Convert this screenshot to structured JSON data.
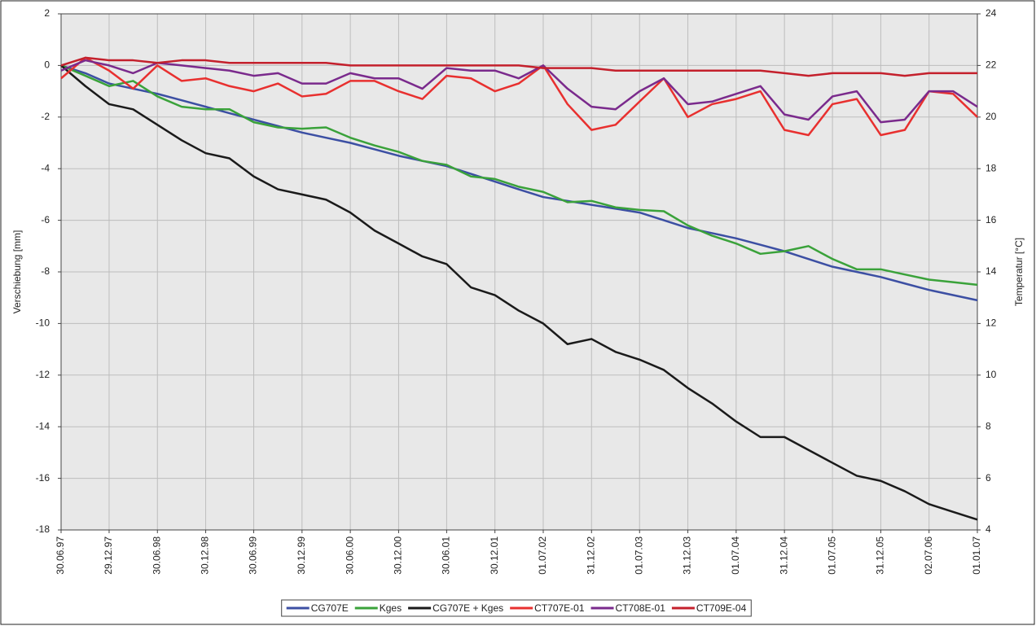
{
  "chart_data": {
    "type": "line",
    "y_label": "Verschiebung [mm]",
    "y2_label": "Temperatur [°C]",
    "x": [
      "30.06.97",
      "30.09.97",
      "29.12.97",
      "30.03.98",
      "30.06.98",
      "30.09.98",
      "30.12.98",
      "30.03.99",
      "30.06.99",
      "30.09.99",
      "30.12.99",
      "30.03.00",
      "30.06.00",
      "30.09.00",
      "30.12.00",
      "30.03.01",
      "30.06.01",
      "30.09.01",
      "30.12.01",
      "30.03.02",
      "01.07.02",
      "01.10.02",
      "31.12.02",
      "01.04.03",
      "01.07.03",
      "01.10.03",
      "31.12.03",
      "01.04.04",
      "01.07.04",
      "01.10.04",
      "31.12.04",
      "01.04.05",
      "01.07.05",
      "01.10.05",
      "31.12.05",
      "01.04.06",
      "02.07.06",
      "01.10.06",
      "01.01.07"
    ],
    "xlim": [
      "30.06.97",
      "01.01.07"
    ],
    "xticks": [
      "30.06.97",
      "29.12.97",
      "30.06.98",
      "30.12.98",
      "30.06.99",
      "30.12.99",
      "30.06.00",
      "30.12.00",
      "30.06.01",
      "30.12.01",
      "01.07.02",
      "31.12.02",
      "01.07.03",
      "31.12.03",
      "01.07.04",
      "31.12.04",
      "01.07.05",
      "31.12.05",
      "02.07.06",
      "01.01.07"
    ],
    "ylim": [
      -18,
      2
    ],
    "yticks": [
      -18,
      -16,
      -14,
      -12,
      -10,
      -8,
      -6,
      -4,
      -2,
      0,
      2
    ],
    "y2lim": [
      4,
      24
    ],
    "y2ticks": [
      4,
      6,
      8,
      10,
      12,
      14,
      16,
      18,
      20,
      22,
      24
    ],
    "grid": true,
    "series": [
      {
        "name": "CG707E",
        "color": "#3c4fa3",
        "values": [
          0,
          -0.3,
          -0.7,
          -0.9,
          -1.1,
          -1.35,
          -1.6,
          -1.85,
          -2.1,
          -2.35,
          -2.6,
          -2.8,
          -3.0,
          -3.25,
          -3.5,
          -3.7,
          -3.9,
          -4.2,
          -4.5,
          -4.8,
          -5.1,
          -5.25,
          -5.4,
          -5.55,
          -5.7,
          -6.0,
          -6.3,
          -6.5,
          -6.7,
          -6.95,
          -7.2,
          -7.5,
          -7.8,
          -8.0,
          -8.2,
          -8.45,
          -8.7,
          -8.9,
          -9.1
        ]
      },
      {
        "name": "Kges",
        "color": "#3aa23a",
        "values": [
          0,
          -0.4,
          -0.8,
          -0.6,
          -1.2,
          -1.6,
          -1.7,
          -1.7,
          -2.2,
          -2.4,
          -2.45,
          -2.4,
          -2.8,
          -3.1,
          -3.35,
          -3.7,
          -3.85,
          -4.3,
          -4.4,
          -4.7,
          -4.9,
          -5.3,
          -5.25,
          -5.5,
          -5.6,
          -5.65,
          -6.2,
          -6.6,
          -6.9,
          -7.3,
          -7.2,
          -7.0,
          -7.5,
          -7.9,
          -7.9,
          -8.1,
          -8.3,
          -8.4,
          -8.5
        ]
      },
      {
        "name": "CG707E + Kges",
        "color": "#1a1a1a",
        "values": [
          0,
          -0.8,
          -1.5,
          -1.7,
          -2.3,
          -2.9,
          -3.4,
          -3.6,
          -4.3,
          -4.8,
          -5.0,
          -5.2,
          -5.7,
          -6.4,
          -6.9,
          -7.4,
          -7.7,
          -8.6,
          -8.9,
          -9.5,
          -10.0,
          -10.8,
          -10.6,
          -11.1,
          -11.4,
          -11.8,
          -12.5,
          -13.1,
          -13.8,
          -14.4,
          -14.4,
          -14.9,
          -15.4,
          -15.9,
          -16.1,
          -16.5,
          -17.0,
          -17.3,
          -17.6
        ]
      },
      {
        "name": "CT707E-01",
        "color": "#e8302f",
        "axis": "y2",
        "values": [
          21.5,
          22.3,
          21.8,
          21.1,
          22.0,
          21.4,
          21.5,
          21.2,
          21.0,
          21.3,
          20.8,
          20.9,
          21.4,
          21.4,
          21.0,
          20.7,
          21.6,
          21.5,
          21.0,
          21.3,
          22.0,
          20.5,
          19.5,
          19.7,
          20.6,
          21.5,
          20.0,
          20.5,
          20.7,
          21.0,
          19.5,
          19.3,
          20.5,
          20.7,
          19.3,
          19.5,
          21.0,
          20.9,
          20.0
        ]
      },
      {
        "name": "CT708E-01",
        "color": "#7a2a8c",
        "axis": "y2",
        "values": [
          21.8,
          22.2,
          22.0,
          21.7,
          22.1,
          22.0,
          21.9,
          21.8,
          21.6,
          21.7,
          21.3,
          21.3,
          21.7,
          21.5,
          21.5,
          21.1,
          21.9,
          21.8,
          21.8,
          21.5,
          22.0,
          21.1,
          20.4,
          20.3,
          21.0,
          21.5,
          20.5,
          20.6,
          20.9,
          21.2,
          20.1,
          19.9,
          20.8,
          21.0,
          19.8,
          19.9,
          21.0,
          21.0,
          20.4
        ]
      },
      {
        "name": "CT709E-04",
        "color": "#c4202c",
        "axis": "y2",
        "values": [
          22.0,
          22.3,
          22.2,
          22.2,
          22.1,
          22.2,
          22.2,
          22.1,
          22.1,
          22.1,
          22.1,
          22.1,
          22.0,
          22.0,
          22.0,
          22.0,
          22.0,
          22.0,
          22.0,
          22.0,
          21.9,
          21.9,
          21.9,
          21.8,
          21.8,
          21.8,
          21.8,
          21.8,
          21.8,
          21.8,
          21.7,
          21.6,
          21.7,
          21.7,
          21.7,
          21.6,
          21.7,
          21.7,
          21.7
        ]
      }
    ]
  }
}
